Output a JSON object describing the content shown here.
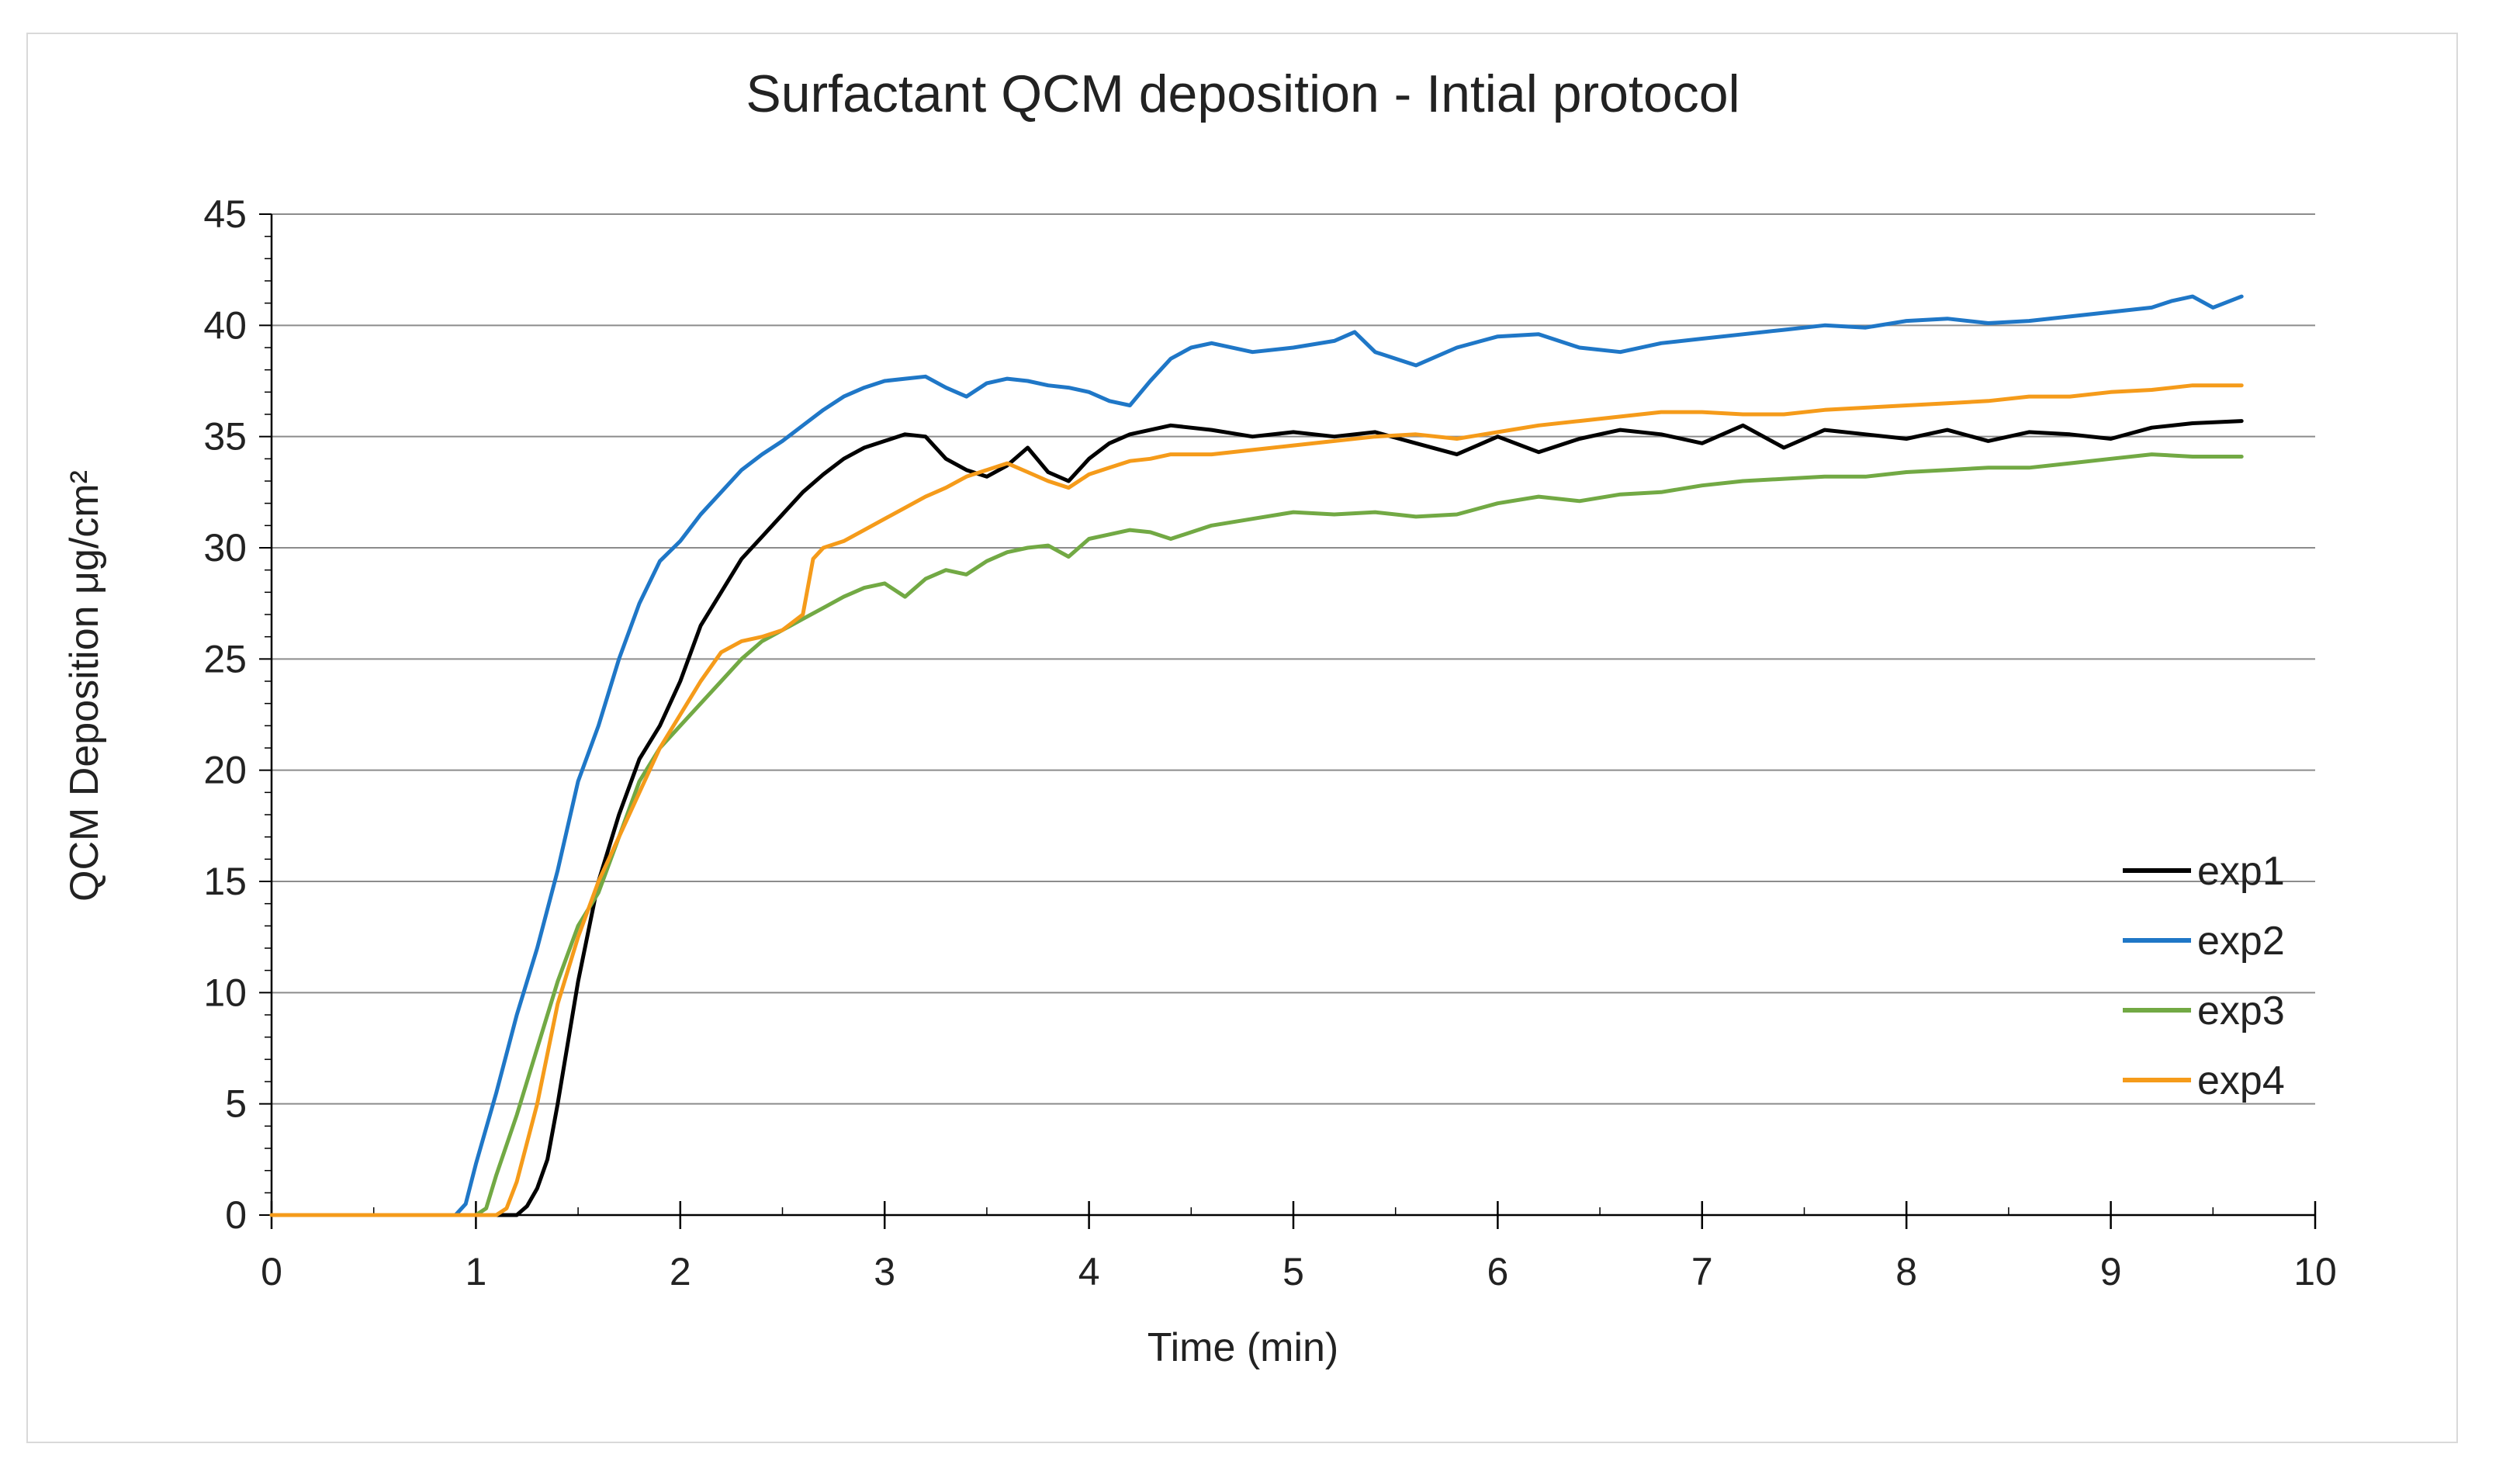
{
  "chart_data": {
    "type": "line",
    "title": "Surfactant QCM deposition - Intial protocol",
    "xlabel": "Time (min)",
    "ylabel": "QCM Deposition  μg/cm²",
    "xlim": [
      0,
      10
    ],
    "ylim": [
      0,
      45
    ],
    "x_ticks": [
      "0",
      "1",
      "2",
      "3",
      "4",
      "5",
      "6",
      "7",
      "8",
      "9",
      "10"
    ],
    "y_ticks": [
      "0",
      "5",
      "10",
      "15",
      "20",
      "25",
      "30",
      "35",
      "40",
      "45"
    ],
    "grid": "horizontal",
    "legend": "bottom-right",
    "series": [
      {
        "name": "exp1",
        "color": "#000000",
        "x": [
          0,
          1.2,
          1.25,
          1.3,
          1.35,
          1.4,
          1.5,
          1.6,
          1.7,
          1.8,
          1.9,
          2.0,
          2.1,
          2.2,
          2.3,
          2.4,
          2.5,
          2.6,
          2.7,
          2.8,
          2.9,
          3.0,
          3.1,
          3.2,
          3.3,
          3.4,
          3.5,
          3.6,
          3.7,
          3.8,
          3.9,
          4.0,
          4.1,
          4.2,
          4.3,
          4.4,
          4.6,
          4.8,
          5.0,
          5.2,
          5.4,
          5.6,
          5.8,
          6.0,
          6.2,
          6.4,
          6.6,
          6.8,
          7.0,
          7.2,
          7.4,
          7.6,
          7.8,
          8.0,
          8.2,
          8.4,
          8.6,
          8.8,
          9.0,
          9.2,
          9.4,
          9.64
        ],
        "y": [
          0,
          0,
          0.4,
          1.2,
          2.5,
          5,
          10.5,
          15,
          18,
          20.5,
          22,
          24,
          26.5,
          28,
          29.5,
          30.5,
          31.5,
          32.5,
          33.3,
          34,
          34.5,
          34.8,
          35.1,
          35,
          34,
          33.5,
          33.2,
          33.7,
          34.5,
          33.4,
          33,
          34,
          34.7,
          35.1,
          35.3,
          35.5,
          35.3,
          35,
          35.2,
          35,
          35.2,
          34.7,
          34.2,
          35,
          34.3,
          34.9,
          35.3,
          35.1,
          34.7,
          35.5,
          34.5,
          35.3,
          35.1,
          34.9,
          35.3,
          34.8,
          35.2,
          35.1,
          34.9,
          35.4,
          35.6,
          35.7
        ]
      },
      {
        "name": "exp2",
        "color": "#1f77c7",
        "x": [
          0,
          0.9,
          0.95,
          1.0,
          1.1,
          1.2,
          1.3,
          1.4,
          1.5,
          1.6,
          1.7,
          1.8,
          1.9,
          2.0,
          2.1,
          2.2,
          2.3,
          2.4,
          2.5,
          2.6,
          2.7,
          2.8,
          2.9,
          3.0,
          3.1,
          3.2,
          3.3,
          3.4,
          3.5,
          3.6,
          3.7,
          3.8,
          3.9,
          4.0,
          4.1,
          4.2,
          4.3,
          4.4,
          4.5,
          4.6,
          4.8,
          5.0,
          5.2,
          5.3,
          5.4,
          5.6,
          5.8,
          6.0,
          6.2,
          6.4,
          6.6,
          6.8,
          7.0,
          7.2,
          7.4,
          7.6,
          7.8,
          8.0,
          8.2,
          8.4,
          8.6,
          8.8,
          9.0,
          9.2,
          9.3,
          9.4,
          9.5,
          9.64
        ],
        "y": [
          0,
          0,
          0.5,
          2.3,
          5.5,
          9,
          12,
          15.5,
          19.5,
          22,
          25,
          27.5,
          29.4,
          30.3,
          31.5,
          32.5,
          33.5,
          34.2,
          34.8,
          35.5,
          36.2,
          36.8,
          37.2,
          37.5,
          37.6,
          37.7,
          37.2,
          36.8,
          37.4,
          37.6,
          37.5,
          37.3,
          37.2,
          37,
          36.6,
          36.4,
          37.5,
          38.5,
          39,
          39.2,
          38.8,
          39,
          39.3,
          39.7,
          38.8,
          38.2,
          39,
          39.5,
          39.6,
          39,
          38.8,
          39.2,
          39.4,
          39.6,
          39.8,
          40,
          39.9,
          40.2,
          40.3,
          40.1,
          40.2,
          40.4,
          40.6,
          40.8,
          41.1,
          41.3,
          40.8,
          41.3
        ]
      },
      {
        "name": "exp3",
        "color": "#72a944",
        "x": [
          0,
          1.0,
          1.05,
          1.1,
          1.2,
          1.3,
          1.4,
          1.5,
          1.6,
          1.7,
          1.8,
          1.9,
          2.0,
          2.1,
          2.2,
          2.3,
          2.4,
          2.5,
          2.6,
          2.7,
          2.8,
          2.9,
          3.0,
          3.1,
          3.2,
          3.3,
          3.4,
          3.5,
          3.6,
          3.7,
          3.8,
          3.9,
          4.0,
          4.1,
          4.2,
          4.3,
          4.4,
          4.6,
          4.8,
          5.0,
          5.2,
          5.4,
          5.6,
          5.8,
          6.0,
          6.2,
          6.4,
          6.6,
          6.8,
          7.0,
          7.2,
          7.4,
          7.6,
          7.8,
          8.0,
          8.2,
          8.4,
          8.6,
          8.8,
          9.0,
          9.2,
          9.4,
          9.64
        ],
        "y": [
          0,
          0,
          0.3,
          1.8,
          4.5,
          7.5,
          10.5,
          13,
          14.5,
          17,
          19.5,
          21,
          22,
          23,
          24,
          25,
          25.8,
          26.3,
          26.8,
          27.3,
          27.8,
          28.2,
          28.4,
          27.8,
          28.6,
          29,
          28.8,
          29.4,
          29.8,
          30,
          30.1,
          29.6,
          30.4,
          30.6,
          30.8,
          30.7,
          30.4,
          31,
          31.3,
          31.6,
          31.5,
          31.6,
          31.4,
          31.5,
          32,
          32.3,
          32.1,
          32.4,
          32.5,
          32.8,
          33,
          33.1,
          33.2,
          33.2,
          33.4,
          33.5,
          33.6,
          33.6,
          33.8,
          34,
          34.2,
          34.1,
          34.1
        ]
      },
      {
        "name": "exp4",
        "color": "#f59b1a",
        "x": [
          0,
          1.1,
          1.15,
          1.2,
          1.3,
          1.4,
          1.5,
          1.6,
          1.7,
          1.8,
          1.9,
          2.0,
          2.1,
          2.2,
          2.3,
          2.4,
          2.5,
          2.6,
          2.65,
          2.7,
          2.8,
          2.9,
          3.0,
          3.1,
          3.2,
          3.3,
          3.4,
          3.5,
          3.6,
          3.7,
          3.8,
          3.9,
          4.0,
          4.1,
          4.2,
          4.3,
          4.4,
          4.6,
          4.8,
          5.0,
          5.2,
          5.4,
          5.6,
          5.8,
          6.0,
          6.2,
          6.4,
          6.6,
          6.8,
          7.0,
          7.2,
          7.4,
          7.6,
          7.8,
          8.0,
          8.2,
          8.4,
          8.6,
          8.8,
          9.0,
          9.2,
          9.4,
          9.64
        ],
        "y": [
          0,
          0,
          0.3,
          1.5,
          5,
          9.5,
          12.5,
          15,
          17,
          19,
          21,
          22.5,
          24,
          25.3,
          25.8,
          26,
          26.3,
          27,
          29.5,
          30,
          30.3,
          30.8,
          31.3,
          31.8,
          32.3,
          32.7,
          33.2,
          33.5,
          33.8,
          33.4,
          33,
          32.7,
          33.3,
          33.6,
          33.9,
          34,
          34.2,
          34.2,
          34.4,
          34.6,
          34.8,
          35,
          35.1,
          34.9,
          35.2,
          35.5,
          35.7,
          35.9,
          36.1,
          36.1,
          36,
          36,
          36.2,
          36.3,
          36.4,
          36.5,
          36.6,
          36.8,
          36.8,
          37,
          37.1,
          37.3,
          37.3
        ]
      }
    ]
  }
}
